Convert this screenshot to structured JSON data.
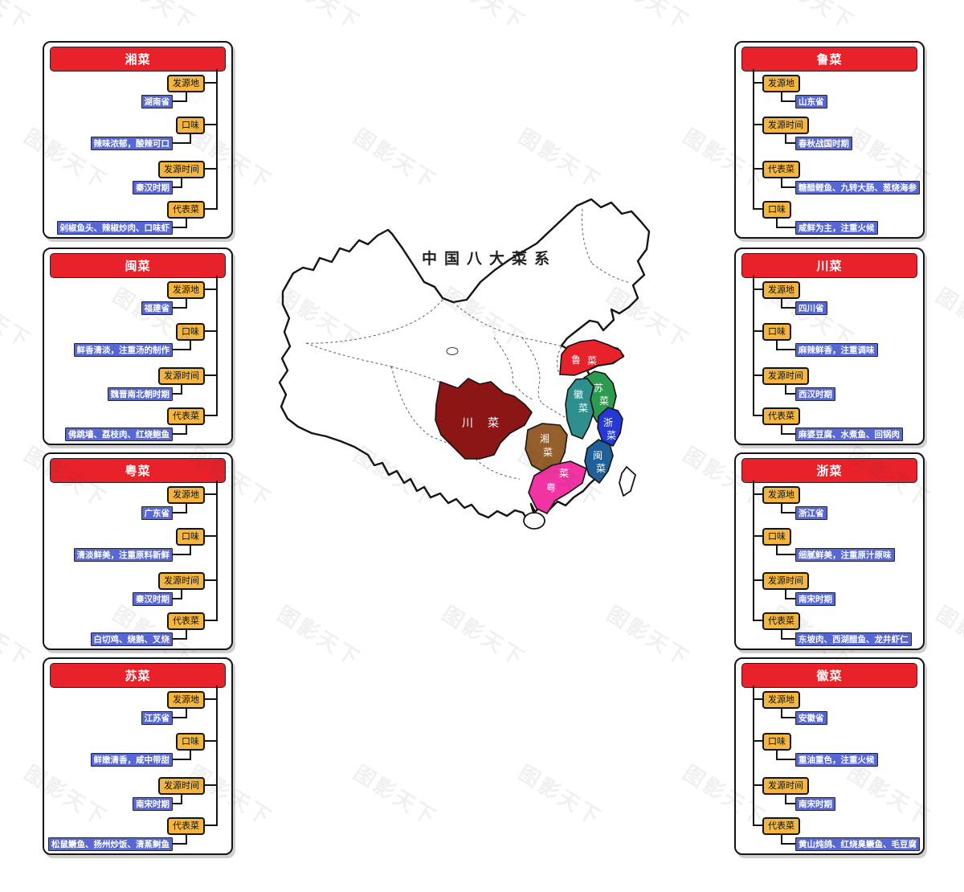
{
  "watermark": {
    "text": "图影天下"
  },
  "colors": {
    "card_header": "#E9212A",
    "attribute_node": "#F4B63F",
    "value_label": "#5767D4",
    "line": "#151515"
  },
  "map": {
    "title": "中国八大菜系",
    "regions": [
      {
        "name": "鲁菜",
        "color": "#E8222B"
      },
      {
        "name": "苏菜",
        "color": "#2C9B4F"
      },
      {
        "name": "徽菜",
        "color": "#2F8F8F"
      },
      {
        "name": "浙菜",
        "color": "#2439D6"
      },
      {
        "name": "闽菜",
        "color": "#20609A"
      },
      {
        "name": "湘菜",
        "color": "#955F2B"
      },
      {
        "name": "粤菜",
        "color": "#F233A3"
      },
      {
        "name": "川菜",
        "color": "#8C1616"
      }
    ]
  },
  "cards": [
    {
      "title": "湘菜",
      "side": "left",
      "row": 0,
      "items": [
        {
          "label": "发源地",
          "value": "湖南省"
        },
        {
          "label": "口味",
          "value": "辣味浓郁，酸辣可口"
        },
        {
          "label": "发源时间",
          "value": "秦汉时期"
        },
        {
          "label": "代表菜",
          "value": "剁椒鱼头、辣椒炒肉、口味虾"
        }
      ]
    },
    {
      "title": "闽菜",
      "side": "left",
      "row": 1,
      "items": [
        {
          "label": "发源地",
          "value": "福建省"
        },
        {
          "label": "口味",
          "value": "鲜香清淡，注重汤的制作"
        },
        {
          "label": "发源时间",
          "value": "魏晋南北朝时期"
        },
        {
          "label": "代表菜",
          "value": "佛跳墙、荔枝肉、红烧鲍鱼"
        }
      ]
    },
    {
      "title": "粤菜",
      "side": "left",
      "row": 2,
      "items": [
        {
          "label": "发源地",
          "value": "广东省"
        },
        {
          "label": "口味",
          "value": "清淡鲜美，注重原料新鲜"
        },
        {
          "label": "发源时间",
          "value": "秦汉时期"
        },
        {
          "label": "代表菜",
          "value": "白切鸡、烧鹅、叉烧"
        }
      ]
    },
    {
      "title": "苏菜",
      "side": "left",
      "row": 3,
      "items": [
        {
          "label": "发源地",
          "value": "江苏省"
        },
        {
          "label": "口味",
          "value": "鲜嫩清香，咸中带甜"
        },
        {
          "label": "发源时间",
          "value": "南宋时期"
        },
        {
          "label": "代表菜",
          "value": "松鼠鳜鱼、扬州炒饭、清蒸鲥鱼"
        }
      ]
    },
    {
      "title": "鲁菜",
      "side": "right",
      "row": 0,
      "items": [
        {
          "label": "发源地",
          "value": "山东省"
        },
        {
          "label": "发源时间",
          "value": "春秋战国时期"
        },
        {
          "label": "代表菜",
          "value": "糖醋鲤鱼、九转大肠、葱烧海参"
        },
        {
          "label": "口味",
          "value": "咸鲜为主，注重火候"
        }
      ]
    },
    {
      "title": "川菜",
      "side": "right",
      "row": 1,
      "items": [
        {
          "label": "发源地",
          "value": "四川省"
        },
        {
          "label": "口味",
          "value": "麻辣鲜香，注重调味"
        },
        {
          "label": "发源时间",
          "value": "西汉时期"
        },
        {
          "label": "代表菜",
          "value": "麻婆豆腐、水煮鱼、回锅肉"
        }
      ]
    },
    {
      "title": "浙菜",
      "side": "right",
      "row": 2,
      "items": [
        {
          "label": "发源地",
          "value": "浙江省"
        },
        {
          "label": "口味",
          "value": "细腻鲜美，注重原汁原味"
        },
        {
          "label": "发源时间",
          "value": "南宋时期"
        },
        {
          "label": "代表菜",
          "value": "东坡肉、西湖醋鱼、龙井虾仁"
        }
      ]
    },
    {
      "title": "徽菜",
      "side": "right",
      "row": 3,
      "items": [
        {
          "label": "发源地",
          "value": "安徽省"
        },
        {
          "label": "口味",
          "value": "重油重色，注重火候"
        },
        {
          "label": "发源时间",
          "value": "南宋时期"
        },
        {
          "label": "代表菜",
          "value": "黄山炖鸽、红烧臭鳜鱼、毛豆腐"
        }
      ]
    }
  ]
}
